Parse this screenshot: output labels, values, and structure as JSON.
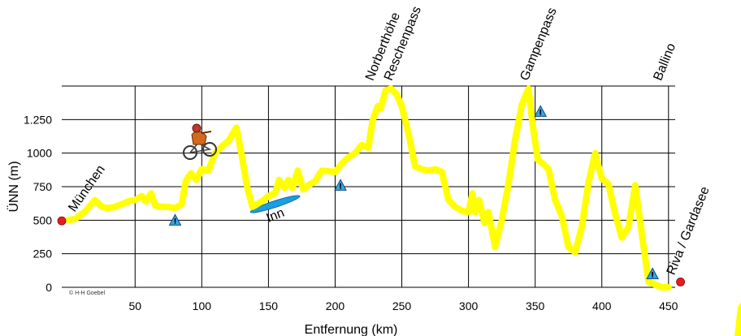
{
  "chart_data": {
    "type": "line",
    "title": "",
    "xlabel": "Entfernung (km)",
    "ylabel": "ÜNN (m)",
    "xlim": [
      -5,
      455
    ],
    "ylim": [
      0,
      1500
    ],
    "x_ticks": [
      50,
      100,
      150,
      200,
      250,
      300,
      350,
      400,
      450
    ],
    "y_ticks": [
      0,
      250,
      500,
      750,
      1000,
      1250
    ],
    "y_tick_labels": [
      "0",
      "250",
      "500",
      "750",
      "1000",
      "1.250"
    ],
    "grid": true,
    "series_color": "#ffff00",
    "credit": "© H-H Goebel",
    "x": [
      0,
      5,
      12,
      20,
      25,
      30,
      35,
      40,
      45,
      50,
      55,
      58,
      62,
      65,
      70,
      75,
      80,
      85,
      88,
      92,
      96,
      100,
      105,
      110,
      115,
      120,
      126,
      130,
      134,
      138,
      140,
      145,
      150,
      155,
      158,
      162,
      165,
      168,
      172,
      176,
      180,
      185,
      190,
      200,
      205,
      210,
      215,
      220,
      225,
      228,
      232,
      234,
      238,
      242,
      246,
      250,
      255,
      260,
      265,
      270,
      275,
      280,
      285,
      290,
      295,
      300,
      303,
      305,
      308,
      312,
      315,
      320,
      325,
      330,
      335,
      340,
      345,
      348,
      352,
      356,
      360,
      365,
      370,
      375,
      380,
      385,
      390,
      395,
      400,
      405,
      410,
      415,
      420,
      425,
      430,
      435,
      440,
      445,
      450
    ],
    "y": [
      500,
      510,
      560,
      650,
      600,
      590,
      600,
      620,
      640,
      650,
      680,
      640,
      700,
      610,
      600,
      600,
      590,
      620,
      790,
      850,
      800,
      880,
      870,
      1000,
      1050,
      1090,
      1190,
      980,
      750,
      600,
      610,
      640,
      680,
      700,
      800,
      740,
      800,
      740,
      870,
      730,
      760,
      790,
      870,
      860,
      920,
      970,
      1000,
      1060,
      1040,
      1240,
      1350,
      1330,
      1470,
      1480,
      1440,
      1350,
      1150,
      900,
      880,
      870,
      880,
      860,
      650,
      600,
      570,
      560,
      700,
      560,
      650,
      480,
      560,
      300,
      500,
      770,
      1100,
      1360,
      1480,
      1220,
      950,
      920,
      880,
      650,
      530,
      300,
      260,
      450,
      780,
      1000,
      810,
      770,
      550,
      370,
      450,
      760,
      400,
      40,
      20,
      0,
      0
    ],
    "annotations": [
      {
        "text": "München",
        "x": 1,
        "y": 520
      },
      {
        "text": "Inn",
        "x": 150,
        "y": 580
      },
      {
        "text": "Norberthöhe",
        "x": 232,
        "y": 1510
      },
      {
        "text": "Reschenpass",
        "x": 246,
        "y": 1510
      },
      {
        "text": "Gampenpass",
        "x": 348,
        "y": 1510
      },
      {
        "text": "Ballino",
        "x": 448,
        "y": 1510
      },
      {
        "text": "Riva / Gardasee",
        "x": 453,
        "y": 50
      }
    ],
    "markers_start_end": [
      {
        "x": -5,
        "y": 495
      },
      {
        "x": 459,
        "y": 40
      }
    ],
    "warning_signs": [
      {
        "x": 80,
        "y": 500
      },
      {
        "x": 204,
        "y": 760
      },
      {
        "x": 354,
        "y": 1310
      },
      {
        "x": 438,
        "y": 100
      }
    ],
    "river_inn": {
      "x": 155,
      "y": 620
    }
  }
}
